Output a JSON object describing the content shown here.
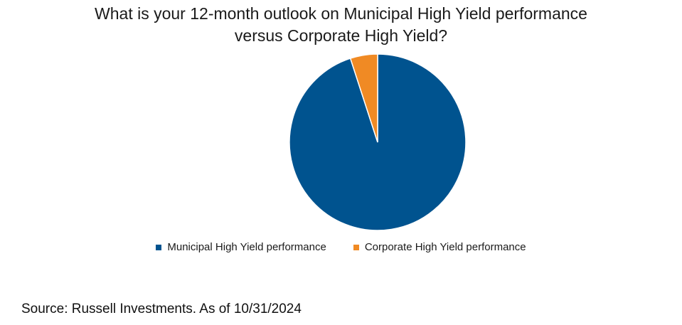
{
  "chart_data": {
    "type": "pie",
    "title_lines": [
      "What is your 12-month outlook on Municipal High Yield performance",
      "versus Corporate High Yield?"
    ],
    "slices": [
      {
        "name": "Municipal High Yield performance",
        "value": 95,
        "color": "#00538f"
      },
      {
        "name": "Corporate High Yield performance",
        "value": 5,
        "color": "#f08a24"
      }
    ],
    "legend_position": "bottom"
  },
  "source": "Source: Russell Investments. As of 10/31/2024"
}
